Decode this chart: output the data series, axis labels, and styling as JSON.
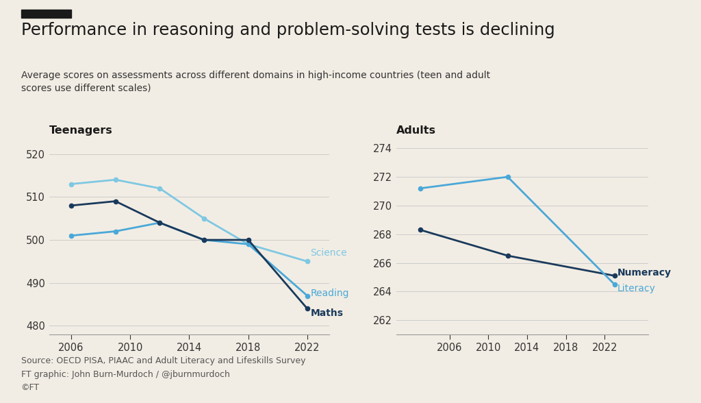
{
  "title": "Performance in reasoning and problem-solving tests is declining",
  "subtitle": "Average scores on assessments across different domains in high-income countries (teen and adult\nscores use different scales)",
  "background_color": "#f2ede4",
  "teen_label": "Teenagers",
  "adult_label": "Adults",
  "teen": {
    "years": [
      2006,
      2009,
      2012,
      2015,
      2018,
      2022
    ],
    "science": [
      513,
      514,
      512,
      505,
      499,
      495
    ],
    "reading": [
      501,
      502,
      504,
      500,
      499,
      487
    ],
    "maths": [
      508,
      509,
      504,
      500,
      500,
      484
    ]
  },
  "adult": {
    "years": [
      2003,
      2012,
      2023
    ],
    "numeracy": [
      268.3,
      266.5,
      265.1
    ],
    "literacy": [
      271.2,
      272.0,
      264.5
    ]
  },
  "teen_ylim": [
    478,
    523
  ],
  "teen_yticks": [
    480,
    490,
    500,
    510,
    520
  ],
  "adult_ylim": [
    261,
    274.5
  ],
  "adult_yticks": [
    262,
    264,
    266,
    268,
    270,
    272,
    274
  ],
  "science_color": "#7ec8e3",
  "reading_color": "#4aa8d8",
  "maths_color": "#1a3a5c",
  "numeracy_color": "#1a3a5c",
  "literacy_color": "#4aa8d8",
  "footer_line1": "Source: OECD PISA, PIAAC and Adult Literacy and Lifeskills Survey",
  "footer_line2": "FT graphic: John Burn-Murdoch / @jburnmurdoch",
  "footer_line3": "©FT",
  "top_bar_color": "#1a1a1a"
}
